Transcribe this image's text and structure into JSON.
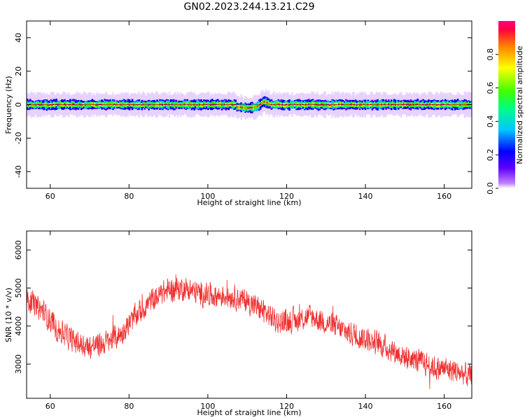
{
  "figure_title": "GN02.2023.244.13.21.C29",
  "colors": {
    "line": "#f03030",
    "background": "#ffffff",
    "axes": "#000000",
    "colormap": [
      "#ffffff",
      "#c080ff",
      "#6000ff",
      "#0000ff",
      "#00c8ff",
      "#00ff80",
      "#40ff00",
      "#ffff00",
      "#ff8000",
      "#ff0040",
      "#ff0080"
    ]
  },
  "chart_data": [
    {
      "type": "heatmap",
      "title": "",
      "xlabel": "Height of straight line (km)",
      "ylabel": "Frequency (Hz)",
      "xlim": [
        54,
        167
      ],
      "ylim": [
        -50,
        50
      ],
      "x_ticks": [
        60,
        80,
        100,
        120,
        140,
        160
      ],
      "y_ticks": [
        -40,
        -20,
        0,
        20,
        40
      ],
      "band": {
        "center_hz": 0,
        "half_width_hz": 3,
        "deviation": {
          "x": [
            108,
            110,
            112,
            113,
            114,
            115,
            116
          ],
          "y": [
            -1.5,
            -2,
            -1.5,
            0,
            2,
            1,
            0
          ]
        }
      },
      "colorbar": {
        "label": "Normalized spectral amplitude",
        "range": [
          0,
          1
        ],
        "ticks": [
          0.0,
          0.2,
          0.4,
          0.6,
          0.8
        ]
      }
    },
    {
      "type": "line",
      "title": "",
      "xlabel": "Height of straight line (km)",
      "ylabel": "SNR (10 * v/v)",
      "xlim": [
        54,
        167
      ],
      "ylim": [
        2100,
        6500
      ],
      "x_ticks": [
        60,
        80,
        100,
        120,
        140,
        160
      ],
      "y_ticks": [
        3000,
        4000,
        5000,
        6000
      ],
      "trend": {
        "x": [
          54,
          58,
          62,
          66,
          70,
          74,
          78,
          82,
          86,
          90,
          94,
          98,
          102,
          106,
          110,
          114,
          118,
          122,
          126,
          130,
          134,
          138,
          142,
          146,
          150,
          154,
          158,
          162,
          167
        ],
        "y": [
          4700,
          4400,
          3900,
          3600,
          3450,
          3550,
          3800,
          4300,
          4700,
          4950,
          5000,
          4850,
          4800,
          4800,
          4650,
          4400,
          4100,
          4150,
          4250,
          4100,
          3900,
          3750,
          3600,
          3400,
          3200,
          3050,
          2900,
          2850,
          2650
        ]
      },
      "noise_amplitude": 280,
      "num_samples": 1800
    }
  ]
}
